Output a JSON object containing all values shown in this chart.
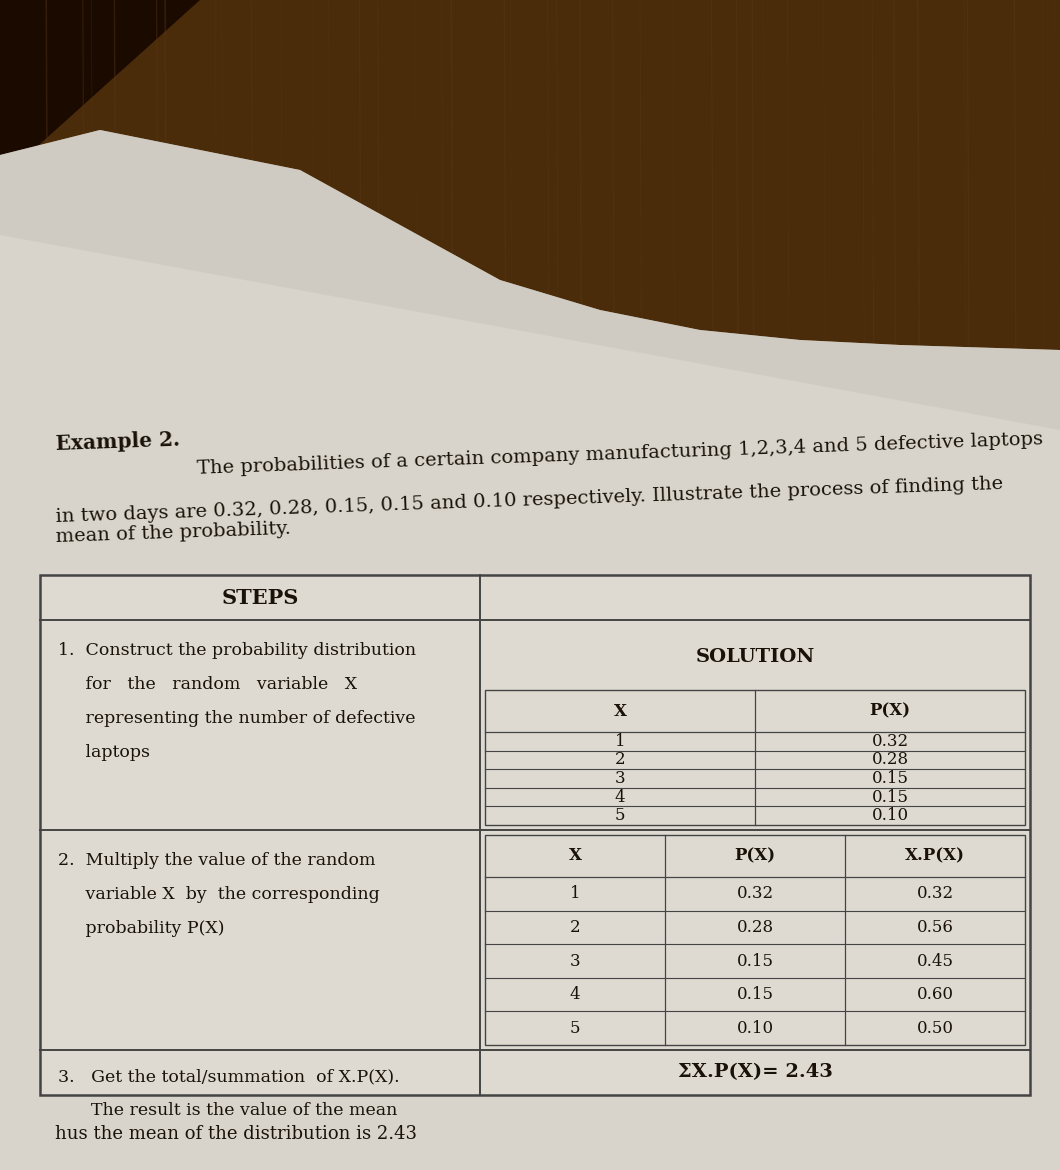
{
  "title_bold": "Example 2.",
  "title_line1_rest": " The probabilities of a certain company manufacturing 1,2,3,4 and 5 defective laptops",
  "title_line2": "in two days are 0.32, 0.28, 0.15, 0.15 and 0.10 respectively. Illustrate the process of finding the",
  "title_line3": "mean of the probability.",
  "steps_header": "STEPS",
  "solution_header": "SOLUTION",
  "step1_lines": [
    "1.  Construct the probability distribution",
    "     for   the   random   variable   X",
    "     representing the number of defective",
    "     laptops"
  ],
  "step2_lines": [
    "2.  Multiply the value of the random",
    "     variable X  by  the corresponding",
    "     probability P(X)"
  ],
  "step3_lines": [
    "3.   Get the total/summation  of X.P(X).",
    "      The result is the value of the mean"
  ],
  "table1_headers": [
    "X",
    "P(X)"
  ],
  "table1_data": [
    [
      "1",
      "0.32"
    ],
    [
      "2",
      "0.28"
    ],
    [
      "3",
      "0.15"
    ],
    [
      "4",
      "0.15"
    ],
    [
      "5",
      "0.10"
    ]
  ],
  "table2_headers": [
    "X",
    "P(X)",
    "X.P(X)"
  ],
  "table2_data": [
    [
      "1",
      "0.32",
      "0.32"
    ],
    [
      "2",
      "0.28",
      "0.56"
    ],
    [
      "3",
      "0.15",
      "0.45"
    ],
    [
      "4",
      "0.15",
      "0.60"
    ],
    [
      "5",
      "0.10",
      "0.50"
    ]
  ],
  "summation_text": "ΣX.P(X)= 2.43",
  "wood_color": "#4a2c0a",
  "wood_color2": "#3a2008",
  "page_color": "#d8d4cc",
  "page_color2": "#c8c4bc",
  "table_bg": "#ccc8c0",
  "text_color": "#1a1208",
  "line_color": "#444444",
  "dark_corner": "#1a0a00"
}
